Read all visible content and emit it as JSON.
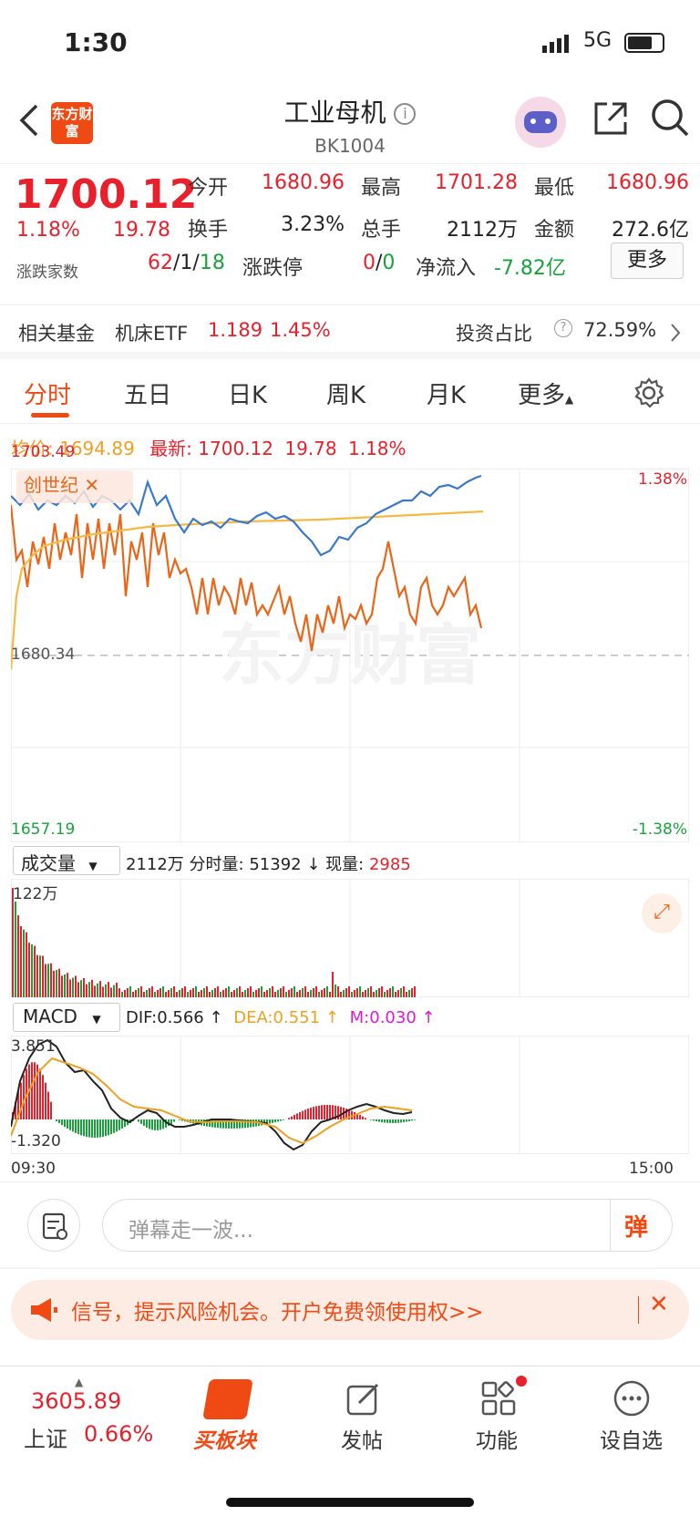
{
  "status_bar": {
    "time": "1:30",
    "network": "5G"
  },
  "header": {
    "logo_text": "东方财富",
    "title": "工业母机",
    "code": "BK1004"
  },
  "quote": {
    "price": "1700.12",
    "change_pct": "1.18%",
    "change": "19.78",
    "open_label": "今开",
    "open": "1680.96",
    "high_label": "最高",
    "high": "1701.28",
    "low_label": "最低",
    "low": "1680.96",
    "turnover_label": "换手",
    "turnover": "3.23%",
    "volume_label": "总手",
    "volume": "2112万",
    "amount_label": "金额",
    "amount": "272.6亿",
    "updown_label": "涨跌家数",
    "up": "62",
    "flat": "1",
    "down": "18",
    "limit_label": "涨跌停",
    "limit_up": "0",
    "limit_down": "0",
    "inflow_label": "净流入",
    "inflow": "-7.82亿",
    "more_button": "更多"
  },
  "fund_bar": {
    "label": "相关基金",
    "fund_name": "机床ETF",
    "fund_price": "1.189",
    "fund_pct": "1.45%",
    "ratio_label": "投资占比",
    "ratio": "72.59%"
  },
  "tabs": [
    "分时",
    "五日",
    "日K",
    "周K",
    "月K",
    "更多"
  ],
  "legend": {
    "avg_label": "均价:",
    "avg": "1694.89",
    "last_label": "最新:",
    "last": "1700.12",
    "chg": "19.78",
    "pct": "1.18%"
  },
  "price_chart": {
    "y_top": "1703.49",
    "y_mid": "1680.34",
    "y_bot": "1657.19",
    "pct_top": "1.38%",
    "pct_bot": "-1.38%",
    "compare_tag": "创世纪",
    "watermark": "东方财富"
  },
  "volume_chart": {
    "selector": "成交量",
    "total": "2112万",
    "time_vol_label": "分时量:",
    "time_vol": "51392",
    "now_label": "现量:",
    "now": "2985",
    "max_label": "122万"
  },
  "macd_chart": {
    "selector": "MACD",
    "dif": "DIF:0.566",
    "dea": "DEA:0.551",
    "m": "M:0.030",
    "y_top": "3.851",
    "y_bot": "-1.320",
    "x_start": "09:30",
    "x_end": "15:00"
  },
  "danmu": {
    "placeholder": "弹幕走一波...",
    "button": "弹"
  },
  "banner": {
    "text": "信号，提示风险机会。开户免费领使用权>>"
  },
  "bottom_nav": {
    "index_value": "3605.89",
    "index_name": "上证",
    "index_pct": "0.66%",
    "items": [
      "买板块",
      "发帖",
      "功能",
      "设自选"
    ]
  },
  "colors": {
    "up": "#e8202b",
    "down": "#17a33a",
    "accent": "#f04a14",
    "avg_line": "#f0a020",
    "price_line": "#3a78c8"
  }
}
